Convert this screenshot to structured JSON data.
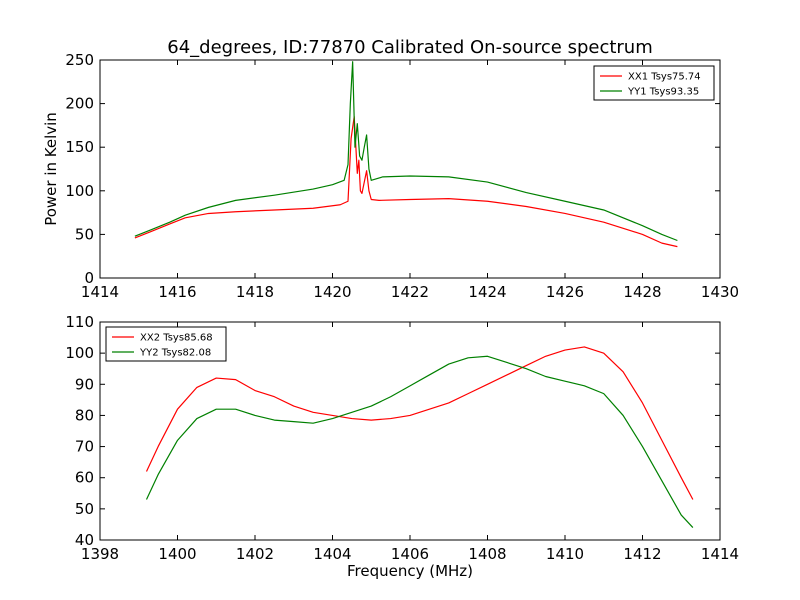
{
  "chart_data": [
    {
      "type": "line",
      "title": "64_degrees, ID:77870 Calibrated On-source spectrum",
      "xlabel": "",
      "ylabel": "Power in Kelvin",
      "xlim": [
        1414,
        1430
      ],
      "ylim": [
        0,
        250
      ],
      "xticks": [
        1414,
        1416,
        1418,
        1420,
        1422,
        1424,
        1426,
        1428,
        1430
      ],
      "yticks": [
        0,
        50,
        100,
        150,
        200,
        250
      ],
      "legend_position": "top-right",
      "grid": false,
      "series": [
        {
          "name": "XX1 Tsys75.74",
          "color": "#ff0000",
          "x": [
            1414.9,
            1415.3,
            1415.8,
            1416.2,
            1416.8,
            1417.5,
            1418.5,
            1419.5,
            1420.2,
            1420.4,
            1420.48,
            1420.56,
            1420.64,
            1420.68,
            1420.72,
            1420.76,
            1420.82,
            1420.88,
            1420.94,
            1421.0,
            1421.2,
            1422.0,
            1423.0,
            1424.0,
            1425.0,
            1426.0,
            1427.0,
            1428.0,
            1428.5,
            1428.9
          ],
          "y": [
            46,
            53,
            62,
            69,
            74,
            76,
            78,
            80,
            84,
            88,
            160,
            185,
            120,
            135,
            100,
            97,
            110,
            123,
            100,
            90,
            89,
            90,
            91,
            88,
            82,
            74,
            64,
            50,
            40,
            36
          ]
        },
        {
          "name": "YY1 Tsys93.35",
          "color": "#008000",
          "x": [
            1414.9,
            1415.3,
            1415.8,
            1416.2,
            1416.8,
            1417.5,
            1418.5,
            1419.5,
            1420.0,
            1420.3,
            1420.4,
            1420.46,
            1420.52,
            1420.58,
            1420.64,
            1420.7,
            1420.76,
            1420.82,
            1420.88,
            1420.94,
            1421.0,
            1421.3,
            1422.0,
            1423.0,
            1424.0,
            1425.0,
            1426.0,
            1427.0,
            1428.0,
            1428.5,
            1428.9
          ],
          "y": [
            48,
            55,
            64,
            72,
            81,
            89,
            95,
            102,
            107,
            112,
            130,
            200,
            248,
            150,
            177,
            140,
            135,
            150,
            164,
            125,
            112,
            116,
            117,
            116,
            110,
            98,
            88,
            78,
            60,
            50,
            43
          ]
        }
      ]
    },
    {
      "type": "line",
      "title": "",
      "xlabel": "Frequency (MHz)",
      "ylabel": "",
      "xlim": [
        1398,
        1414
      ],
      "ylim": [
        40,
        110
      ],
      "xticks": [
        1398,
        1400,
        1402,
        1404,
        1406,
        1408,
        1410,
        1412,
        1414
      ],
      "yticks": [
        40,
        50,
        60,
        70,
        80,
        90,
        100,
        110
      ],
      "legend_position": "top-left",
      "grid": false,
      "series": [
        {
          "name": "XX2 Tsys85.68",
          "color": "#ff0000",
          "x": [
            1399.2,
            1399.5,
            1400.0,
            1400.5,
            1401.0,
            1401.5,
            1402.0,
            1402.5,
            1403.0,
            1403.5,
            1404.0,
            1404.5,
            1405.0,
            1405.5,
            1406.0,
            1406.5,
            1407.0,
            1407.5,
            1408.0,
            1408.5,
            1409.0,
            1409.5,
            1410.0,
            1410.5,
            1411.0,
            1411.5,
            1412.0,
            1412.5,
            1413.0,
            1413.3
          ],
          "y": [
            62,
            70,
            82,
            89,
            92,
            91.5,
            88,
            86,
            83,
            81,
            80,
            79,
            78.5,
            79,
            80,
            82,
            84,
            87,
            90,
            93,
            96,
            99,
            101,
            102,
            100,
            94,
            84,
            72,
            60,
            53
          ]
        },
        {
          "name": "YY2 Tsys82.08",
          "color": "#008000",
          "x": [
            1399.2,
            1399.5,
            1400.0,
            1400.5,
            1401.0,
            1401.5,
            1402.0,
            1402.5,
            1403.0,
            1403.5,
            1404.0,
            1404.5,
            1405.0,
            1405.5,
            1406.0,
            1406.5,
            1407.0,
            1407.5,
            1408.0,
            1408.5,
            1409.0,
            1409.5,
            1410.0,
            1410.5,
            1411.0,
            1411.5,
            1412.0,
            1412.5,
            1413.0,
            1413.3
          ],
          "y": [
            53,
            61,
            72,
            79,
            82,
            82,
            80,
            78.5,
            78,
            77.5,
            79,
            81,
            83,
            86,
            89.5,
            93,
            96.5,
            98.5,
            99,
            97,
            95,
            92.5,
            91,
            89.5,
            87,
            80,
            70,
            59,
            48,
            44
          ]
        }
      ]
    }
  ]
}
